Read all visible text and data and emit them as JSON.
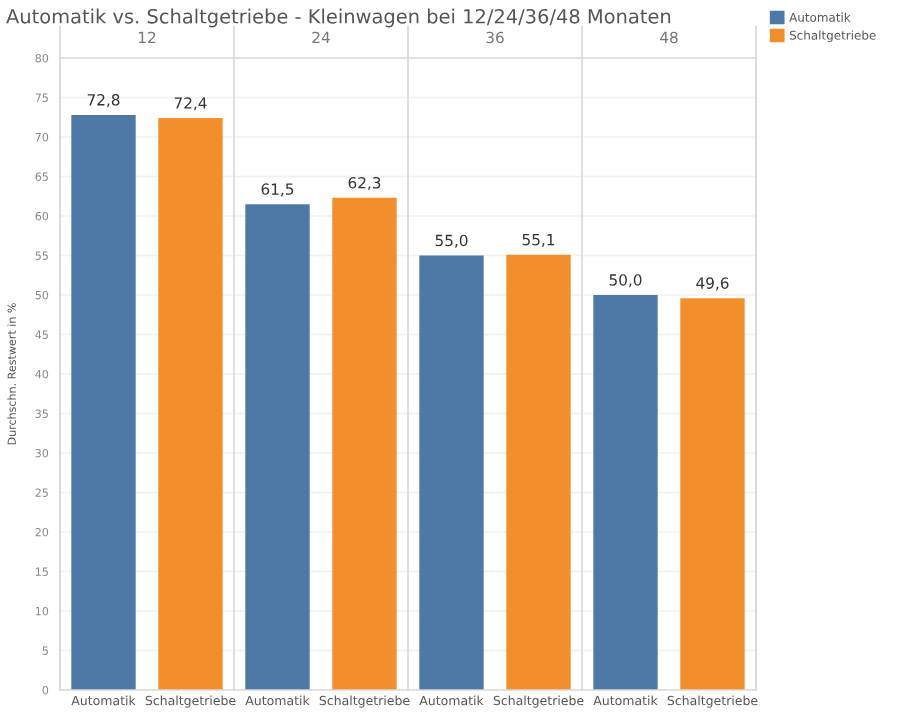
{
  "chart_data": {
    "type": "bar",
    "title": "Automatik vs. Schaltgetriebe - Kleinwagen bei 12/24/36/48 Monaten",
    "ylabel": "Durchschn. Restwert in %",
    "annotations": [
      "12",
      "24",
      "36",
      "48"
    ],
    "categories": [
      "Automatik",
      "Schaltgetriebe",
      "Automatik",
      "Schaltgetriebe",
      "Automatik",
      "Schaltgetriebe",
      "Automatik",
      "Schaltgetriebe"
    ],
    "ylim": [
      0,
      80
    ],
    "yticks": [
      0,
      5,
      10,
      15,
      20,
      25,
      30,
      35,
      40,
      45,
      50,
      55,
      60,
      65,
      70,
      75,
      80
    ],
    "grid": "y",
    "legend": "right",
    "series": [
      {
        "name": "Automatik",
        "color": "#4e79a7",
        "values": [
          72.8,
          null,
          61.5,
          null,
          55.0,
          null,
          50.0,
          null
        ],
        "value_labels": [
          "72,8",
          null,
          "61,5",
          null,
          "55,0",
          null,
          "50,0",
          null
        ]
      },
      {
        "name": "Schaltgetriebe",
        "color": "#f28e2b",
        "values": [
          null,
          72.4,
          null,
          62.3,
          null,
          55.1,
          null,
          49.6
        ],
        "value_labels": [
          null,
          "72,4",
          null,
          "62,3",
          null,
          "55,1",
          null,
          "49,6"
        ]
      }
    ]
  }
}
